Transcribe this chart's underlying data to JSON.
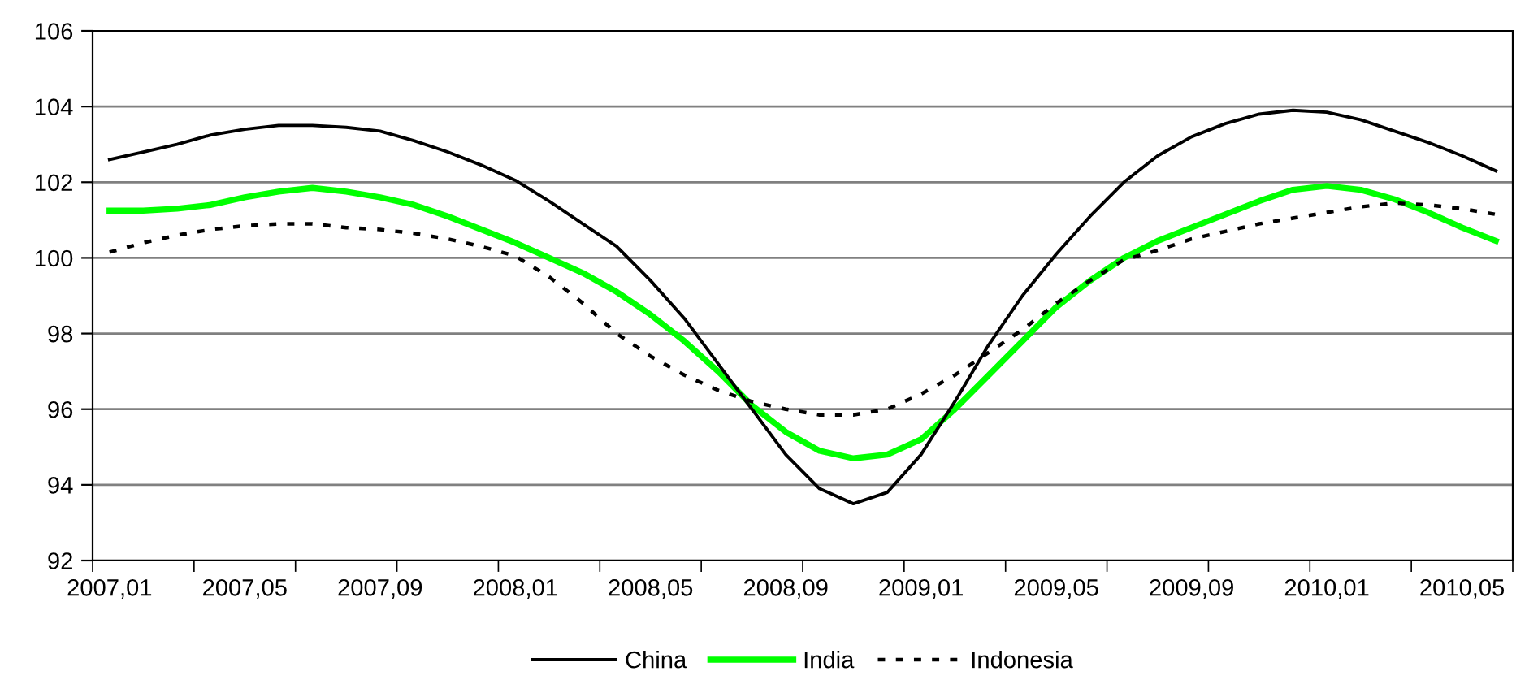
{
  "chart_data": {
    "type": "line",
    "categories": [
      "2007,01",
      null,
      null,
      null,
      "2007,05",
      null,
      null,
      null,
      "2007,09",
      null,
      null,
      null,
      "2008,01",
      null,
      null,
      null,
      "2008,05",
      null,
      null,
      null,
      "2008,09",
      null,
      null,
      null,
      "2009,01",
      null,
      null,
      null,
      "2009,05",
      null,
      null,
      null,
      "2009,09",
      null,
      null,
      null,
      "2010,01",
      null,
      null,
      null,
      "2010,05",
      null
    ],
    "series": [
      {
        "name": "China",
        "color": "#000000",
        "line_style": "solid",
        "values": [
          102.6,
          102.8,
          103.0,
          103.25,
          103.4,
          103.5,
          103.5,
          103.45,
          103.35,
          103.1,
          102.8,
          102.45,
          102.05,
          101.5,
          100.9,
          100.3,
          99.4,
          98.4,
          97.2,
          96.0,
          94.8,
          93.9,
          93.5,
          93.8,
          94.8,
          96.2,
          97.7,
          99.0,
          100.1,
          101.1,
          102.0,
          102.7,
          103.2,
          103.55,
          103.8,
          103.9,
          103.85,
          103.65,
          103.35,
          103.05,
          102.7,
          102.3
        ]
      },
      {
        "name": "India",
        "color": "#00ff00",
        "line_style": "solid",
        "values": [
          101.25,
          101.25,
          101.3,
          101.4,
          101.6,
          101.75,
          101.85,
          101.75,
          101.6,
          101.4,
          101.1,
          100.75,
          100.4,
          100.0,
          99.6,
          99.1,
          98.5,
          97.8,
          97.0,
          96.1,
          95.4,
          94.9,
          94.7,
          94.8,
          95.2,
          96.0,
          96.9,
          97.8,
          98.7,
          99.4,
          100.0,
          100.45,
          100.8,
          101.15,
          101.5,
          101.8,
          101.9,
          101.8,
          101.55,
          101.2,
          100.8,
          100.45
        ]
      },
      {
        "name": "Indonesia",
        "color": "#000000",
        "line_style": "dotted",
        "values": [
          100.15,
          100.4,
          100.6,
          100.75,
          100.85,
          100.9,
          100.9,
          100.8,
          100.75,
          100.65,
          100.5,
          100.3,
          100.05,
          99.5,
          98.8,
          98.0,
          97.4,
          96.9,
          96.5,
          96.2,
          96.0,
          95.85,
          95.85,
          96.0,
          96.4,
          96.9,
          97.5,
          98.1,
          98.8,
          99.4,
          99.95,
          100.2,
          100.5,
          100.7,
          100.9,
          101.05,
          101.2,
          101.35,
          101.45,
          101.4,
          101.3,
          101.15
        ]
      }
    ],
    "ylim": [
      92,
      106
    ],
    "yticks": [
      92,
      94,
      96,
      98,
      100,
      102,
      104,
      106
    ],
    "grid": "y",
    "legend": "bottom",
    "marker": "none"
  }
}
